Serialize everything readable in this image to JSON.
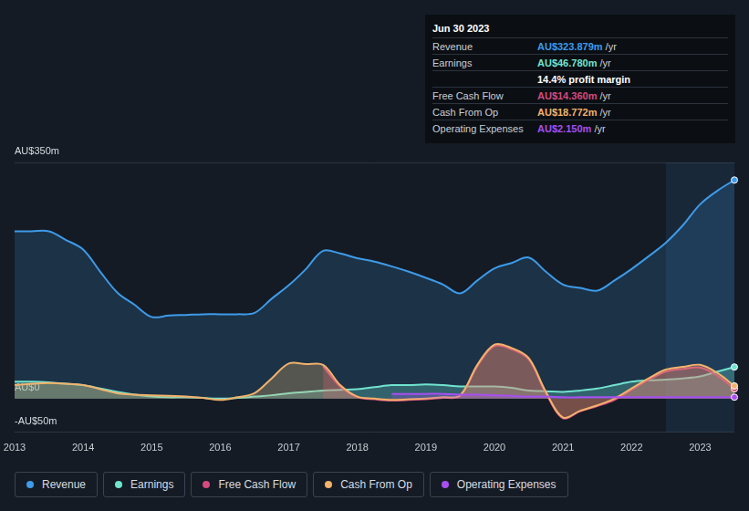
{
  "chart_data": {
    "type": "line",
    "categories": [
      "2013",
      null,
      null,
      null,
      "2014",
      null,
      null,
      null,
      "2015",
      null,
      null,
      null,
      "2016",
      null,
      null,
      null,
      "2017",
      null,
      null,
      null,
      "2018",
      null,
      null,
      null,
      "2019",
      null,
      null,
      null,
      "2020",
      null,
      null,
      null,
      "2021",
      null,
      null,
      null,
      "2022",
      null,
      null,
      null,
      "2023",
      null,
      null
    ],
    "series": [
      {
        "name": "Revenue",
        "color": "#3d9be9",
        "values": [
          248,
          248,
          248,
          235,
          221,
          188,
          157,
          139,
          121,
          123,
          124,
          125,
          125,
          125,
          127,
          148,
          168,
          192,
          219,
          215,
          208,
          203,
          196,
          188,
          179,
          169,
          156,
          175,
          193,
          201,
          209,
          188,
          169,
          164,
          160,
          175,
          192,
          211,
          231,
          257,
          288,
          308,
          323.9
        ]
      },
      {
        "name": "Earnings",
        "color": "#71e3cf",
        "values": [
          25,
          25,
          24,
          22,
          20,
          15,
          10,
          6,
          3,
          2,
          2,
          1,
          0,
          1,
          3,
          5,
          8,
          10,
          12,
          13,
          14,
          17,
          20,
          20,
          21,
          20,
          18,
          18,
          18,
          16,
          12,
          11,
          10,
          12,
          15,
          20,
          25,
          27,
          28,
          30,
          33,
          40,
          46.8
        ]
      },
      {
        "name": "Free Cash Flow",
        "color": "#d54a7f",
        "values": [
          null,
          null,
          null,
          null,
          null,
          null,
          null,
          null,
          null,
          null,
          null,
          null,
          null,
          null,
          null,
          null,
          null,
          null,
          48,
          18,
          2,
          -1,
          -3,
          -2,
          -1,
          1,
          4,
          48,
          78,
          73,
          58,
          8,
          -29,
          -19,
          -11,
          -2,
          13,
          28,
          40,
          44,
          46,
          34,
          14.4
        ]
      },
      {
        "name": "Cash From Op",
        "color": "#f2b26b",
        "values": [
          20,
          22,
          23,
          22,
          20,
          14,
          8,
          6,
          5,
          4,
          3,
          1,
          -2,
          2,
          8,
          30,
          52,
          51,
          50,
          20,
          3,
          0,
          -2,
          -1,
          0,
          2,
          5,
          50,
          80,
          75,
          60,
          10,
          -28,
          -18,
          -10,
          0,
          15,
          30,
          43,
          47,
          50,
          38,
          18.8
        ]
      },
      {
        "name": "Operating Expenses",
        "color": "#a64ff0",
        "values": [
          null,
          null,
          null,
          null,
          null,
          null,
          null,
          null,
          null,
          null,
          null,
          null,
          null,
          null,
          null,
          null,
          null,
          null,
          null,
          null,
          null,
          null,
          7,
          7,
          7,
          7,
          6,
          6,
          5,
          4,
          3,
          3,
          2,
          2,
          2,
          2,
          2,
          2,
          2,
          2,
          2,
          2,
          2.15
        ]
      }
    ],
    "ylim": [
      -50,
      350
    ],
    "yticks": [
      {
        "value": -50,
        "label": "-AU$50m"
      },
      {
        "value": 0,
        "label": "AU$0"
      },
      {
        "value": 350,
        "label": "AU$350m"
      }
    ],
    "grid": true,
    "legend": "bottom",
    "annotations": [
      {
        "title": "Jun 30 2023",
        "rows": [
          {
            "label": "Revenue",
            "value": "AU$323.879m",
            "unit": "/yr"
          },
          {
            "label": "Earnings",
            "value": "AU$46.780m",
            "unit": "/yr"
          },
          {
            "text": "14.4% profit margin"
          },
          {
            "label": "Free Cash Flow",
            "value": "AU$14.360m",
            "unit": "/yr"
          },
          {
            "label": "Cash From Op",
            "value": "AU$18.772m",
            "unit": "/yr"
          },
          {
            "label": "Operating Expenses",
            "value": "AU$2.150m",
            "unit": "/yr"
          }
        ]
      }
    ]
  }
}
